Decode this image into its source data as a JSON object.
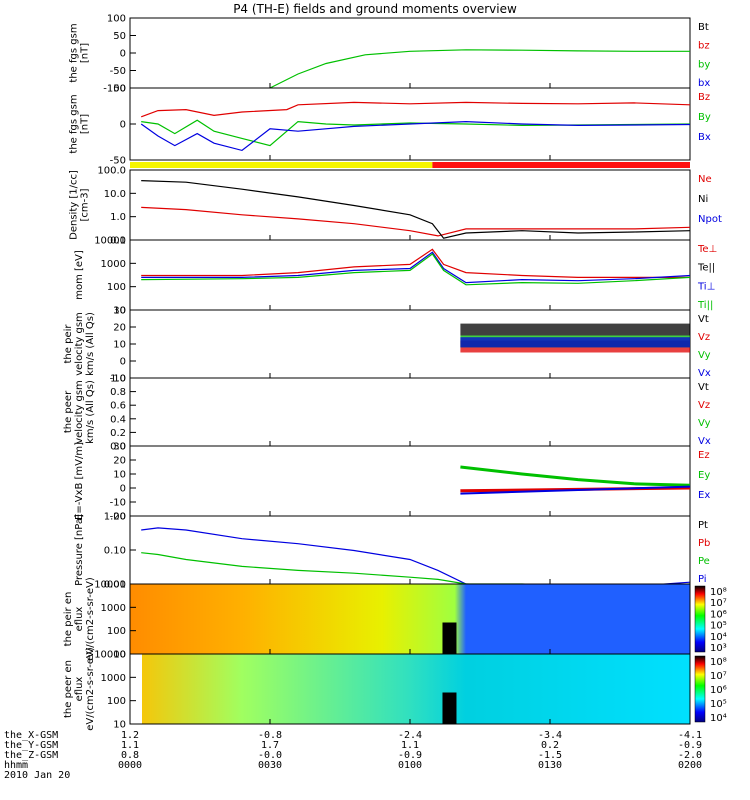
{
  "title": "P4 (TH-E) fields and ground moments overview",
  "colors": {
    "black": "#000000",
    "red": "#e00000",
    "green": "#00c000",
    "blue": "#0000e0",
    "yellow": "#f5f500",
    "bar_red": "#ff1010"
  },
  "ephemeris": {
    "rows": [
      {
        "label": "the_X-GSM",
        "values": [
          "1.2",
          "-0.8",
          "-2.4",
          "-3.4",
          "-4.1"
        ]
      },
      {
        "label": "the_Y-GSM",
        "values": [
          "1.1",
          "1.7",
          "1.1",
          "0.2",
          "-0.9"
        ]
      },
      {
        "label": "the_Z-GSM",
        "values": [
          "0.8",
          "-0.0",
          "-0.9",
          "-1.5",
          "-2.0"
        ]
      },
      {
        "label": "hhmm",
        "values": [
          "0000",
          "0030",
          "0100",
          "0130",
          "0200"
        ]
      }
    ],
    "date": "2010 Jan 20"
  },
  "chart_data": [
    {
      "type": "line",
      "ylabel": "the fgs gsm [nT]",
      "ylim": [
        -100,
        100
      ],
      "yticks": [
        "100",
        "50",
        "0",
        "-50",
        "-100"
      ],
      "legend": [
        "Bt",
        "bz",
        "by",
        "bx"
      ],
      "legend_colors": [
        "#000000",
        "#e00000",
        "#00c000",
        "#0000e0"
      ],
      "x_hhmm": [
        "0000",
        "0030",
        "0100",
        "0130",
        "0200"
      ],
      "series": [
        {
          "name": "by",
          "x": [
            0.25,
            0.3,
            0.35,
            0.42,
            0.5,
            0.6,
            0.7,
            0.8,
            0.9,
            1.0
          ],
          "values": [
            -100,
            -60,
            -30,
            -5,
            5,
            9,
            8,
            6,
            5,
            5
          ]
        }
      ]
    },
    {
      "type": "line",
      "ylabel": "the fgs gsm [nT]",
      "ylim": [
        -75,
        75
      ],
      "yticks": [
        "50",
        "0",
        "-50"
      ],
      "legend": [
        "Bz",
        "By",
        "Bx"
      ],
      "legend_colors": [
        "#e00000",
        "#00c000",
        "#0000e0"
      ],
      "series": [
        {
          "name": "Bz",
          "x": [
            0.02,
            0.05,
            0.1,
            0.15,
            0.2,
            0.28,
            0.3,
            0.4,
            0.5,
            0.6,
            0.7,
            0.8,
            0.9,
            1.0
          ],
          "values": [
            15,
            28,
            30,
            18,
            25,
            30,
            40,
            45,
            42,
            45,
            43,
            42,
            44,
            40
          ]
        },
        {
          "name": "By",
          "x": [
            0.02,
            0.05,
            0.08,
            0.12,
            0.15,
            0.2,
            0.25,
            0.3,
            0.35,
            0.4,
            0.5,
            0.6,
            0.7,
            0.8,
            0.9,
            1.0
          ],
          "values": [
            5,
            0,
            -20,
            8,
            -15,
            -30,
            -45,
            5,
            0,
            -2,
            2,
            0,
            -3,
            -2,
            -1,
            0
          ]
        },
        {
          "name": "Bx",
          "x": [
            0.02,
            0.05,
            0.08,
            0.12,
            0.15,
            0.2,
            0.25,
            0.3,
            0.4,
            0.5,
            0.6,
            0.7,
            0.8,
            0.9,
            1.0
          ],
          "values": [
            0,
            -25,
            -45,
            -20,
            -40,
            -55,
            -10,
            -15,
            -5,
            0,
            5,
            0,
            -3,
            -2,
            -1
          ]
        }
      ],
      "mode_bar": {
        "segments": [
          {
            "until": 0.54,
            "color": "yellow"
          },
          {
            "until": 1.0,
            "color": "bar_red"
          }
        ]
      }
    },
    {
      "type": "line",
      "ylabel": "Density [1/cc] [cm-3]",
      "log": true,
      "ylim": [
        0.1,
        100
      ],
      "yticks": [
        "100.0",
        "10.0",
        "1.0",
        "0.1"
      ],
      "legend": [
        "Ne",
        "Ni",
        "Npot"
      ],
      "legend_colors": [
        "#e00000",
        "#000000",
        "#0000e0"
      ],
      "series": [
        {
          "name": "Ne",
          "x": [
            0.02,
            0.1,
            0.2,
            0.3,
            0.4,
            0.5,
            0.55,
            0.6,
            0.7,
            0.8,
            0.9,
            1.0
          ],
          "values": [
            2.5,
            2.0,
            1.2,
            0.8,
            0.5,
            0.25,
            0.15,
            0.3,
            0.3,
            0.3,
            0.3,
            0.35
          ]
        },
        {
          "name": "Ni",
          "x": [
            0.02,
            0.1,
            0.2,
            0.3,
            0.4,
            0.5,
            0.54,
            0.56,
            0.6,
            0.7,
            0.8,
            0.9,
            1.0
          ],
          "values": [
            35,
            30,
            15,
            7,
            3,
            1.2,
            0.5,
            0.12,
            0.2,
            0.25,
            0.2,
            0.22,
            0.25
          ]
        }
      ]
    },
    {
      "type": "line",
      "ylabel": "mom [eV]",
      "log": true,
      "ylim": [
        10,
        10000
      ],
      "yticks": [
        "10000",
        "1000",
        "100",
        "10"
      ],
      "legend": [
        "Te⊥",
        "Te||",
        "Ti⊥",
        "Ti||"
      ],
      "legend_colors": [
        "#e00000",
        "#000000",
        "#0000e0",
        "#00c000"
      ],
      "series": [
        {
          "name": "Te⊥",
          "x": [
            0.02,
            0.2,
            0.3,
            0.4,
            0.5,
            0.54,
            0.56,
            0.6,
            0.7,
            0.8,
            0.9,
            1.0
          ],
          "values": [
            300,
            300,
            400,
            700,
            900,
            4000,
            900,
            400,
            300,
            250,
            250,
            250
          ]
        },
        {
          "name": "Ti⊥",
          "x": [
            0.02,
            0.2,
            0.3,
            0.4,
            0.5,
            0.54,
            0.56,
            0.6,
            0.7,
            0.8,
            0.9,
            1.0
          ],
          "values": [
            250,
            250,
            300,
            500,
            600,
            3000,
            600,
            150,
            200,
            180,
            220,
            300
          ]
        },
        {
          "name": "Ti||",
          "x": [
            0.02,
            0.2,
            0.3,
            0.4,
            0.5,
            0.54,
            0.56,
            0.6,
            0.7,
            0.8,
            0.9,
            1.0
          ],
          "values": [
            200,
            220,
            250,
            400,
            500,
            2500,
            500,
            120,
            150,
            140,
            180,
            250
          ]
        }
      ]
    },
    {
      "type": "line",
      "ylabel": "the peir velocity gsm km/s (All Qs)",
      "ylim": [
        -10,
        30
      ],
      "yticks": [
        "30",
        "20",
        "10",
        "0",
        "-10"
      ],
      "legend": [
        "Vt",
        "Vz",
        "Vy",
        "Vx"
      ],
      "legend_colors": [
        "#000000",
        "#e00000",
        "#00c000",
        "#0000e0"
      ]
    },
    {
      "type": "line",
      "ylabel": "the peer velocity gsm km/s (All Qs)",
      "ylim": [
        0,
        1
      ],
      "yticks": [
        "1.0",
        "0.8",
        "0.6",
        "0.4",
        "0.2",
        "0.0"
      ],
      "legend": [
        "Vt",
        "Vz",
        "Vy",
        "Vx"
      ],
      "legend_colors": [
        "#000000",
        "#e00000",
        "#00c000",
        "#0000e0"
      ]
    },
    {
      "type": "line",
      "ylabel": "E=-VxB [mV/m]",
      "ylim": [
        -20,
        30
      ],
      "yticks": [
        "30",
        "20",
        "10",
        "0",
        "-10",
        "-20"
      ],
      "legend": [
        "Ez",
        "Ey",
        "Ex"
      ],
      "legend_colors": [
        "#e00000",
        "#00c000",
        "#0000e0"
      ]
    },
    {
      "type": "line",
      "ylabel": "Pressure [nPa]",
      "log": true,
      "ylim": [
        0.005,
        5
      ],
      "yticks": [
        "1.00",
        "0.10",
        "0.01"
      ],
      "legend": [
        "Pt",
        "Pb",
        "Pe",
        "Pi"
      ],
      "legend_colors": [
        "#000000",
        "#e00000",
        "#00c000",
        "#0000e0"
      ],
      "series": [
        {
          "name": "Pi",
          "x": [
            0.02,
            0.05,
            0.1,
            0.2,
            0.3,
            0.4,
            0.5,
            0.55,
            0.6,
            0.7,
            0.8,
            0.9,
            1.0
          ],
          "values": [
            1.2,
            1.5,
            1.2,
            0.5,
            0.3,
            0.15,
            0.06,
            0.02,
            0.005,
            0.004,
            0.004,
            0.004,
            0.006
          ]
        },
        {
          "name": "Pe",
          "x": [
            0.02,
            0.05,
            0.1,
            0.2,
            0.3,
            0.4,
            0.5,
            0.55,
            0.6,
            0.7,
            0.8,
            0.9,
            1.0
          ],
          "values": [
            0.12,
            0.1,
            0.06,
            0.03,
            0.02,
            0.015,
            0.01,
            0.008,
            0.005,
            0.005,
            0.004,
            0.004,
            0.005
          ]
        }
      ]
    },
    {
      "type": "heatmap",
      "ylabel": "the peir en eflux eV/(cm2-s-sr-eV)",
      "yticks": [
        "10000",
        "1000",
        "100",
        "10"
      ],
      "colorbar_labels": [
        "10⁸",
        "10⁷",
        "10⁶",
        "10⁵",
        "10⁴",
        "10³"
      ]
    },
    {
      "type": "heatmap",
      "ylabel": "the peer en eflux eV/(cm2-s-sr-eV)",
      "yticks": [
        "10000",
        "1000",
        "100",
        "10"
      ],
      "colorbar_labels": [
        "10⁸",
        "10⁷",
        "10⁶",
        "10⁵",
        "10⁴"
      ]
    }
  ]
}
